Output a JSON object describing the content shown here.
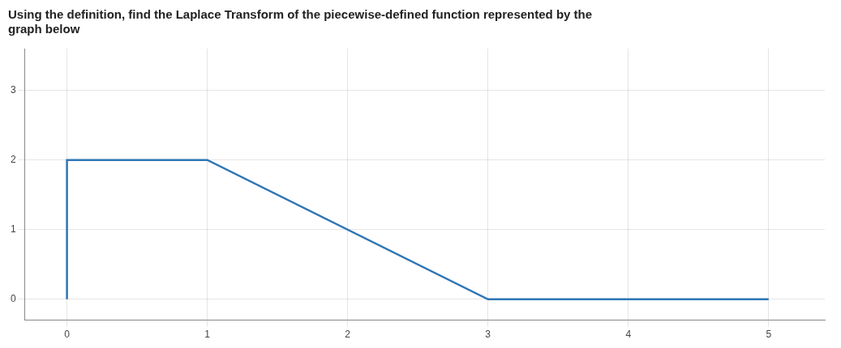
{
  "chart_data": {
    "type": "line",
    "title": "Using the definition, find the Laplace Transform of the piecewise-defined function represented by the\ngraph below",
    "x": [
      0,
      0,
      1,
      3,
      5
    ],
    "values": [
      0,
      2,
      2,
      0,
      0
    ],
    "color": "#2E75B6",
    "xlim": [
      -0.3,
      5.4
    ],
    "ylim": [
      -0.3,
      3.6
    ],
    "xticks": [
      0,
      1,
      2,
      3,
      4,
      5
    ],
    "yticks": [
      0,
      1,
      2,
      3
    ],
    "grid": true
  }
}
